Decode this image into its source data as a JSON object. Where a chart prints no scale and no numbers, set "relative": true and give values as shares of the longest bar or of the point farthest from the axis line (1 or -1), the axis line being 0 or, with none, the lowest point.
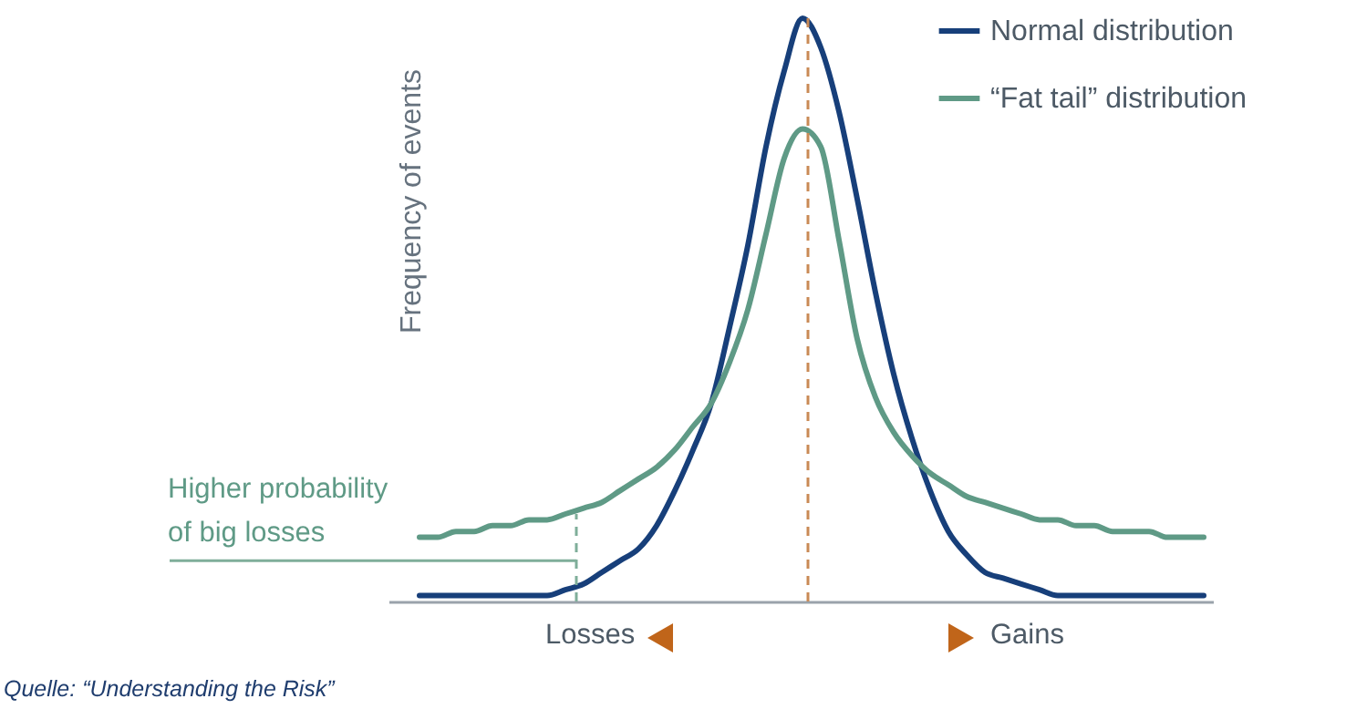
{
  "chart_data": {
    "type": "line",
    "relative": true,
    "ylabel": "Frequency of events",
    "legend": "top right",
    "line_style": "solid",
    "categories": [
      null,
      null,
      null,
      null,
      null,
      null,
      null,
      null,
      null,
      null,
      null,
      null,
      null,
      null,
      null,
      null,
      null,
      null,
      null,
      null,
      null,
      null,
      null,
      null,
      null,
      null,
      null,
      null,
      null,
      null,
      null,
      null,
      null,
      null,
      null,
      null,
      null,
      null,
      null,
      null,
      null,
      null,
      null,
      null
    ],
    "series": [
      {
        "name": "Normal distribution",
        "color": "#173f7a",
        "values": [
          0.01,
          0.01,
          0.01,
          0.01,
          0.01,
          0.01,
          0.01,
          0.01,
          0.02,
          0.03,
          0.05,
          0.07,
          0.09,
          0.13,
          0.19,
          0.26,
          0.34,
          0.47,
          0.61,
          0.78,
          0.91,
          1.0,
          0.95,
          0.84,
          0.69,
          0.53,
          0.39,
          0.28,
          0.19,
          0.12,
          0.08,
          0.05,
          0.04,
          0.03,
          0.02,
          0.01,
          0.01,
          0.01,
          0.01,
          0.01,
          0.01,
          0.01,
          0.01,
          0.01
        ]
      },
      {
        "name": "“Fat tail” distribution",
        "color": "#5f9a86",
        "values": [
          0.11,
          0.11,
          0.12,
          0.12,
          0.13,
          0.13,
          0.14,
          0.14,
          0.15,
          0.16,
          0.17,
          0.19,
          0.21,
          0.23,
          0.26,
          0.3,
          0.34,
          0.41,
          0.5,
          0.63,
          0.76,
          0.81,
          0.78,
          0.62,
          0.45,
          0.35,
          0.29,
          0.25,
          0.22,
          0.2,
          0.18,
          0.17,
          0.16,
          0.15,
          0.14,
          0.14,
          0.13,
          0.13,
          0.12,
          0.12,
          0.12,
          0.11,
          0.11,
          0.11
        ]
      }
    ],
    "annotations": [
      "Higher probability of big losses",
      "Losses",
      "Gains",
      "Quelle: “Understanding the Risk”"
    ]
  }
}
